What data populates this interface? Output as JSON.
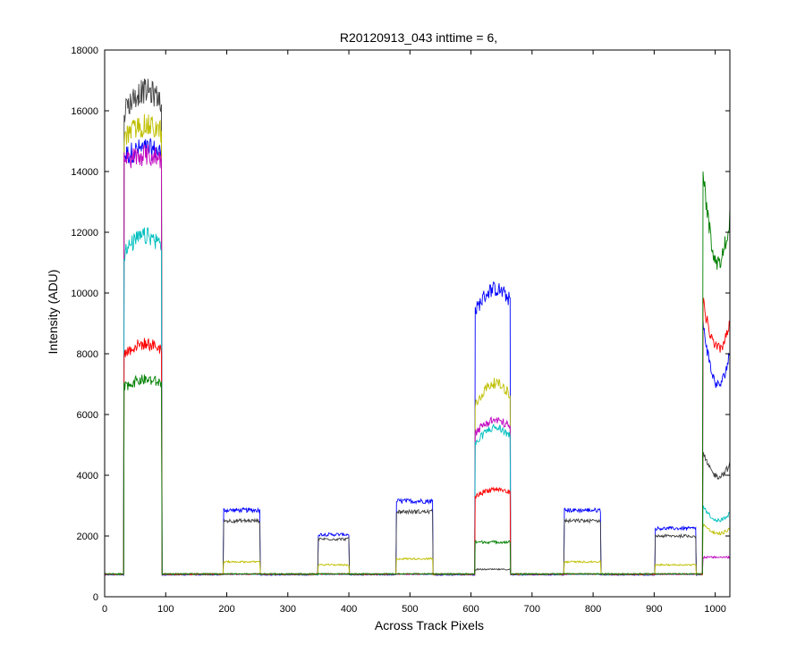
{
  "chart_data": {
    "type": "line",
    "title": "R20120913_043 inttime = 6,",
    "xlabel": "Across Track Pixels",
    "ylabel": "Intensity (ADU)",
    "xlim": [
      0,
      1024
    ],
    "ylim": [
      0,
      18000
    ],
    "xticks": [
      0,
      100,
      200,
      300,
      400,
      500,
      600,
      700,
      800,
      900,
      1000
    ],
    "yticks": [
      0,
      2000,
      4000,
      6000,
      8000,
      10000,
      12000,
      14000,
      16000,
      18000
    ],
    "grid": false,
    "legend": "none",
    "baseline": 720,
    "series": [
      {
        "color": "#0000ff",
        "segments": [
          {
            "x0": 32,
            "x1": 93,
            "level": 14500,
            "rise": 300
          },
          {
            "x0": 195,
            "x1": 254,
            "level": 2850,
            "rise": 0
          },
          {
            "x0": 350,
            "x1": 400,
            "level": 2050,
            "rise": 0
          },
          {
            "x0": 478,
            "x1": 537,
            "level": 3150,
            "rise": 0
          },
          {
            "x0": 607,
            "x1": 664,
            "level": 9400,
            "rise": 900
          },
          {
            "x0": 753,
            "x1": 812,
            "level": 2850,
            "rise": 0
          },
          {
            "x0": 902,
            "x1": 968,
            "level": 2250,
            "rise": 0
          },
          {
            "x0": 980,
            "x1": 1024,
            "level": 9000,
            "rise": -2500
          }
        ]
      },
      {
        "color": "#404040",
        "segments": [
          {
            "x0": 32,
            "x1": 93,
            "level": 16000,
            "rise": 800
          },
          {
            "x0": 195,
            "x1": 254,
            "level": 2500,
            "rise": 0
          },
          {
            "x0": 350,
            "x1": 400,
            "level": 1900,
            "rise": 0
          },
          {
            "x0": 478,
            "x1": 537,
            "level": 2800,
            "rise": 0
          },
          {
            "x0": 607,
            "x1": 664,
            "level": 900,
            "rise": 0
          },
          {
            "x0": 753,
            "x1": 812,
            "level": 2500,
            "rise": 0
          },
          {
            "x0": 902,
            "x1": 968,
            "level": 2000,
            "rise": 0
          },
          {
            "x0": 980,
            "x1": 1024,
            "level": 4700,
            "rise": -900
          }
        ]
      },
      {
        "color": "#bfbf00",
        "segments": [
          {
            "x0": 32,
            "x1": 93,
            "level": 15100,
            "rise": 500
          },
          {
            "x0": 195,
            "x1": 254,
            "level": 1150,
            "rise": 0
          },
          {
            "x0": 350,
            "x1": 400,
            "level": 1050,
            "rise": 0
          },
          {
            "x0": 478,
            "x1": 537,
            "level": 1250,
            "rise": 0
          },
          {
            "x0": 607,
            "x1": 664,
            "level": 6300,
            "rise": 900
          },
          {
            "x0": 753,
            "x1": 812,
            "level": 1150,
            "rise": 0
          },
          {
            "x0": 902,
            "x1": 968,
            "level": 1050,
            "rise": 0
          },
          {
            "x0": 980,
            "x1": 1024,
            "level": 2400,
            "rise": -400
          }
        ]
      },
      {
        "color": "#bf00bf",
        "segments": [
          {
            "x0": 32,
            "x1": 93,
            "level": 14300,
            "rise": 300
          },
          {
            "x0": 607,
            "x1": 664,
            "level": 5400,
            "rise": 500
          },
          {
            "x0": 980,
            "x1": 1024,
            "level": 1300,
            "rise": 0
          }
        ]
      },
      {
        "color": "#00bfbf",
        "segments": [
          {
            "x0": 32,
            "x1": 93,
            "level": 11300,
            "rise": 700
          },
          {
            "x0": 607,
            "x1": 664,
            "level": 5000,
            "rise": 700
          },
          {
            "x0": 980,
            "x1": 1024,
            "level": 3000,
            "rise": -600
          }
        ]
      },
      {
        "color": "#ff0000",
        "segments": [
          {
            "x0": 32,
            "x1": 93,
            "level": 8000,
            "rise": 400
          },
          {
            "x0": 607,
            "x1": 664,
            "level": 3300,
            "rise": 300
          },
          {
            "x0": 980,
            "x1": 1024,
            "level": 9700,
            "rise": -1900
          }
        ]
      },
      {
        "color": "#008000",
        "segments": [
          {
            "x0": 32,
            "x1": 93,
            "level": 6900,
            "rise": 300
          },
          {
            "x0": 607,
            "x1": 664,
            "level": 1800,
            "rise": 0
          },
          {
            "x0": 980,
            "x1": 1024,
            "level": 14000,
            "rise": -3700
          }
        ]
      }
    ]
  }
}
